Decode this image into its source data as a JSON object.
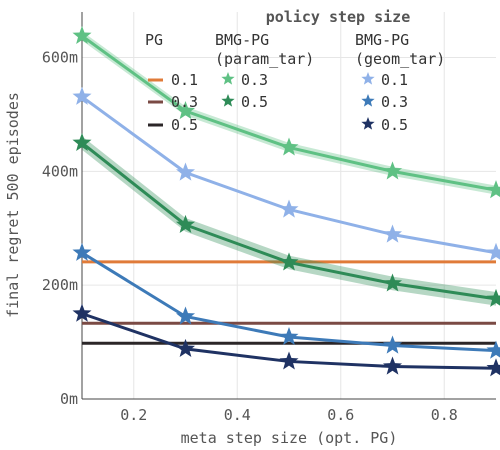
{
  "chart_data": {
    "type": "line",
    "xlabel": "meta step size (opt. PG)",
    "ylabel": "final regret 500 episodes",
    "xlim": [
      0.1,
      0.9
    ],
    "ylim": [
      0,
      680
    ],
    "xticks": [
      0.2,
      0.4,
      0.6,
      0.8
    ],
    "xtick_labels": [
      "0.2",
      "0.4",
      "0.6",
      "0.8"
    ],
    "yticks": [
      0,
      200,
      400,
      600
    ],
    "ytick_labels": [
      "0m",
      "200m",
      "400m",
      "600m"
    ],
    "grid": true,
    "legend": {
      "title": "policy step size",
      "placement": "top-right",
      "columns": [
        {
          "header": [
            "PG"
          ],
          "labels": [
            "0.1",
            "0.3",
            "0.5"
          ]
        },
        {
          "header": [
            "BMG-PG",
            "(param_tar)"
          ],
          "labels": [
            "0.3",
            "0.5"
          ]
        },
        {
          "header": [
            "BMG-PG",
            "(geom_tar)"
          ],
          "labels": [
            "0.1",
            "0.3",
            "0.5"
          ]
        }
      ]
    },
    "x": [
      0.1,
      0.3,
      0.5,
      0.7,
      0.9
    ],
    "series": [
      {
        "group": "PG",
        "label": "0.1",
        "color": "#e07b39",
        "marker": "none",
        "values": [
          241,
          241,
          241,
          241,
          241
        ]
      },
      {
        "group": "PG",
        "label": "0.3",
        "color": "#7a4a44",
        "marker": "none",
        "values": [
          133,
          133,
          133,
          133,
          133
        ]
      },
      {
        "group": "PG",
        "label": "0.5",
        "color": "#2b2628",
        "marker": "none",
        "values": [
          98,
          98,
          98,
          98,
          98
        ]
      },
      {
        "group": "BMG-PG (param_tar)",
        "label": "0.3",
        "color": "#5fc184",
        "marker": "star",
        "values": [
          638,
          506,
          442,
          400,
          367
        ],
        "band": 8
      },
      {
        "group": "BMG-PG (param_tar)",
        "label": "0.5",
        "color": "#2e8b57",
        "marker": "star",
        "values": [
          450,
          306,
          240,
          203,
          176
        ],
        "band": 12
      },
      {
        "group": "BMG-PG (geom_tar)",
        "label": "0.1",
        "color": "#8fb1e8",
        "marker": "star",
        "values": [
          531,
          398,
          333,
          289,
          257
        ],
        "band": 0
      },
      {
        "group": "BMG-PG (geom_tar)",
        "label": "0.3",
        "color": "#3d7ab8",
        "marker": "star",
        "values": [
          257,
          145,
          109,
          94,
          85
        ],
        "band": 0
      },
      {
        "group": "BMG-PG (geom_tar)",
        "label": "0.5",
        "color": "#1f3263",
        "marker": "star",
        "values": [
          150,
          88,
          66,
          57,
          54
        ],
        "band": 0
      }
    ]
  }
}
